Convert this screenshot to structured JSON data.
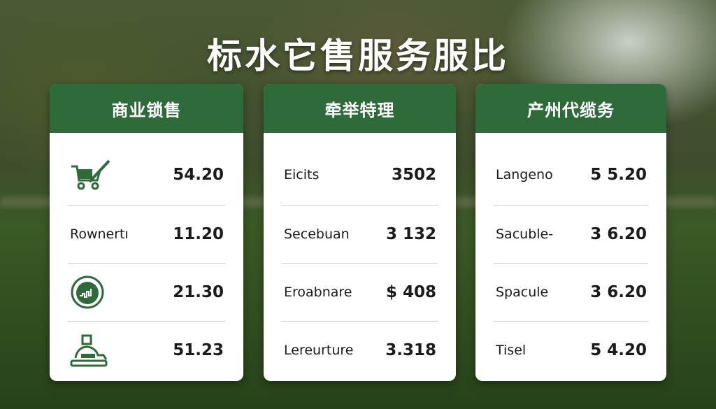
{
  "title": "标水它售服务服比",
  "colors": {
    "header": "#2f6a3a",
    "icon": "#2f6a3a"
  },
  "cards": [
    {
      "title": "商业锁售",
      "rows": [
        {
          "icon": "cart-pen-icon",
          "label": "",
          "value": "54.20"
        },
        {
          "label": "Rownertı",
          "value": "11.20"
        },
        {
          "icon": "growth-chart-circle-icon",
          "label": "",
          "value": "21.30"
        },
        {
          "icon": "worker-desk-icon",
          "label": "",
          "value": "51.23"
        }
      ]
    },
    {
      "title": "牵举特理",
      "rows": [
        {
          "label": "Eicits",
          "value": "3502"
        },
        {
          "label": "Secebuan",
          "value": "3 132"
        },
        {
          "label": "Eroabnare",
          "value": "$ 408"
        },
        {
          "label": "Lereurture",
          "value": "3.318"
        }
      ]
    },
    {
      "title": "产州代缆务",
      "rows": [
        {
          "label": "Langeno",
          "value": "5 5.20"
        },
        {
          "label": "Sacuble-",
          "value": "3 6.20"
        },
        {
          "label": "Spacule",
          "value": "3 6.20"
        },
        {
          "label": "Tisel",
          "value": "5 4.20"
        }
      ]
    }
  ]
}
